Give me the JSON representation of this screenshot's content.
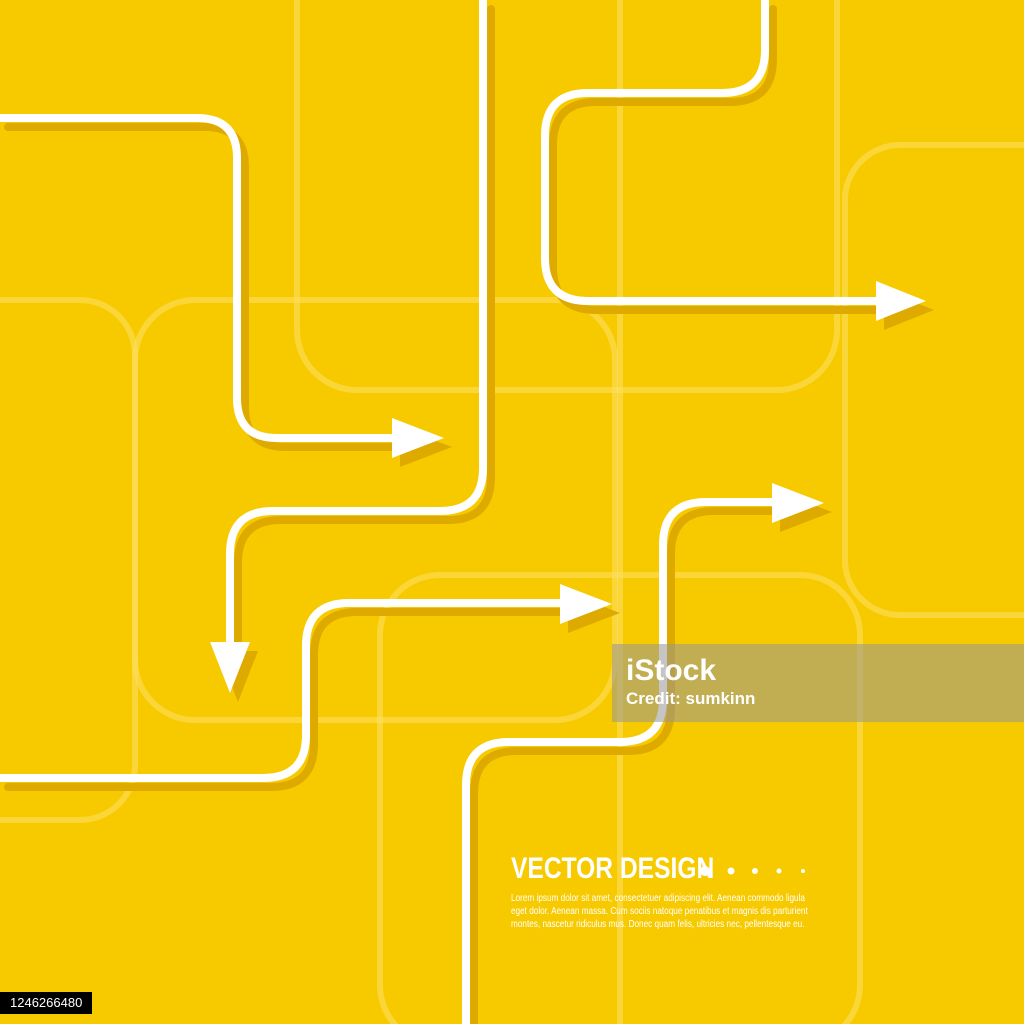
{
  "colors": {
    "background": "#f7ca00",
    "line": "#ffffff",
    "shadow": "#dfaa00",
    "frame": "#ffe066"
  },
  "watermark": {
    "logo": "iStock",
    "credit": "Credit: sumkinn",
    "image_id": "1246266480"
  },
  "design": {
    "title": "VECTOR DESIGN",
    "body_lines": [
      "Lorem ipsum dolor sit amet, consectetuer adipiscing elit. Aenean commodo ligula",
      "eget dolor. Aenean massa. Cum sociis natoque penatibus et magnis dis parturient",
      "montes, nascetur ridiculus mus. Donec quam felis, ultricies nec, pellentesque eu."
    ]
  }
}
